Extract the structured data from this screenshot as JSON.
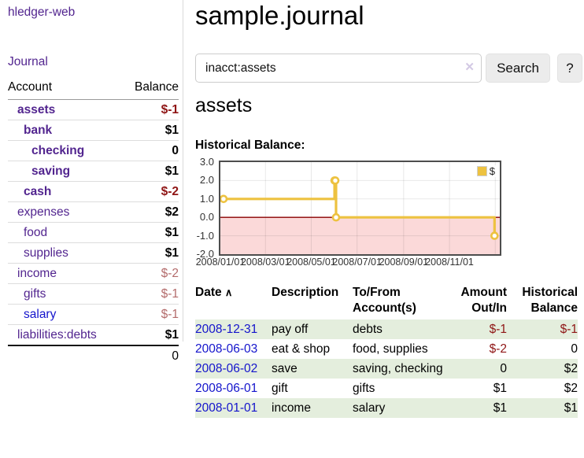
{
  "sidebar": {
    "app_title": "hledger-web",
    "journal_link": "Journal",
    "accounts_header": {
      "account": "Account",
      "balance": "Balance"
    },
    "accounts": [
      {
        "label": "assets",
        "indent": 0,
        "bold": true,
        "link_color": "purple",
        "balance": "$-1",
        "balance_class": "neg-strong"
      },
      {
        "label": "bank",
        "indent": 1,
        "bold": true,
        "link_color": "purple",
        "balance": "$1",
        "balance_class": "pos"
      },
      {
        "label": "checking",
        "indent": 2,
        "bold": true,
        "link_color": "purple",
        "balance": "0",
        "balance_class": "pos"
      },
      {
        "label": "saving",
        "indent": 2,
        "bold": true,
        "link_color": "purple",
        "balance": "$1",
        "balance_class": "pos"
      },
      {
        "label": "cash",
        "indent": 1,
        "bold": true,
        "link_color": "purple",
        "balance": "$-2",
        "balance_class": "neg-strong"
      },
      {
        "label": "expenses",
        "indent": 0,
        "bold": false,
        "link_color": "purple",
        "balance": "$2",
        "balance_class": "pos"
      },
      {
        "label": "food",
        "indent": 1,
        "bold": false,
        "link_color": "purple",
        "balance": "$1",
        "balance_class": "pos"
      },
      {
        "label": "supplies",
        "indent": 1,
        "bold": false,
        "link_color": "purple",
        "balance": "$1",
        "balance_class": "pos"
      },
      {
        "label": "income",
        "indent": 0,
        "bold": false,
        "link_color": "purple",
        "balance": "$-2",
        "balance_class": "neg-soft"
      },
      {
        "label": "gifts",
        "indent": 1,
        "bold": false,
        "link_color": "purple",
        "balance": "$-1",
        "balance_class": "neg-soft"
      },
      {
        "label": "salary",
        "indent": 1,
        "bold": false,
        "link_color": "blue",
        "balance": "$-1",
        "balance_class": "neg-soft"
      },
      {
        "label": "liabilities:debts",
        "indent": 0,
        "bold": false,
        "link_color": "purple",
        "balance": "$1",
        "balance_class": "pos"
      }
    ],
    "total_balance": "0"
  },
  "main": {
    "title": "sample.journal",
    "search": {
      "value": "inacct:assets",
      "clear_icon": "✕",
      "button_label": "Search",
      "help_label": "?"
    },
    "section_title": "assets"
  },
  "chart_data": {
    "type": "line",
    "style": "step",
    "title": "Historical Balance:",
    "series": [
      {
        "name": "$",
        "color": "#EDC240",
        "points": [
          [
            "2008-01-01",
            1
          ],
          [
            "2008-06-01",
            2
          ],
          [
            "2008-06-02",
            2
          ],
          [
            "2008-06-03",
            0
          ],
          [
            "2008-12-31",
            -1
          ]
        ]
      }
    ],
    "ylim": [
      -2,
      3
    ],
    "yticks": [
      3,
      2,
      1,
      0,
      -1,
      -2
    ],
    "ytick_labels": [
      "3.0",
      "2.0",
      "1.0",
      "0.0",
      "-1.0",
      "-2.0"
    ],
    "xtick_labels": [
      "2008/01/01",
      "2008/03/01",
      "2008/05/01",
      "2008/07/01",
      "2008/09/01",
      "2008/11/01"
    ],
    "xtick_dates": [
      "2008-01-01",
      "2008-03-01",
      "2008-05-01",
      "2008-07-01",
      "2008-09-01",
      "2008-11-01"
    ],
    "extra_gridline_date": "2009-01-01",
    "x_range_days": 372,
    "grid": true,
    "negative_region_color": "#fbd9d9",
    "zero_line_color": "#8b0000",
    "legend": {
      "label": "$",
      "position": "top-right"
    }
  },
  "table": {
    "headers": {
      "date": "Date",
      "sort_indicator": "∧",
      "description": "Description",
      "accounts": "To/From Account(s)",
      "amount": "Amount Out/In",
      "balance": "Historical Balance"
    },
    "rows": [
      {
        "date": "2008-12-31",
        "description": "pay off",
        "accounts": "debts",
        "amount": "$-1",
        "amount_negative": true,
        "balance": "$-1",
        "balance_negative": true,
        "shaded": true
      },
      {
        "date": "2008-06-03",
        "description": "eat & shop",
        "accounts": "food, supplies",
        "amount": "$-2",
        "amount_negative": true,
        "balance": "0",
        "balance_negative": false,
        "shaded": false
      },
      {
        "date": "2008-06-02",
        "description": "save",
        "accounts": "saving, checking",
        "amount": "0",
        "amount_negative": false,
        "balance": "$2",
        "balance_negative": false,
        "shaded": true
      },
      {
        "date": "2008-06-01",
        "description": "gift",
        "accounts": "gifts",
        "amount": "$1",
        "amount_negative": false,
        "balance": "$2",
        "balance_negative": false,
        "shaded": false
      },
      {
        "date": "2008-01-01",
        "description": "income",
        "accounts": "salary",
        "amount": "$1",
        "amount_negative": false,
        "balance": "$1",
        "balance_negative": false,
        "shaded": true
      }
    ]
  }
}
